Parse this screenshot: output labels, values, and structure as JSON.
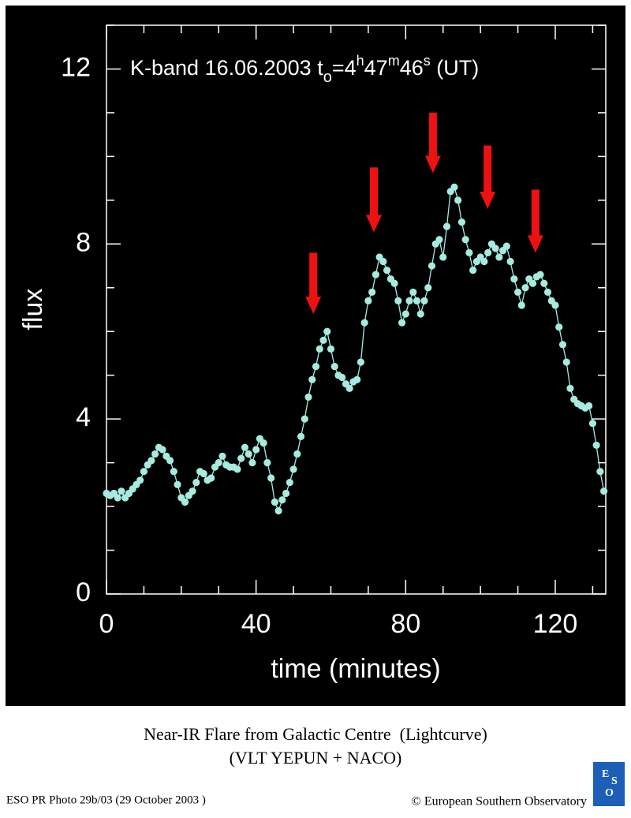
{
  "chart_data": {
    "type": "line",
    "annotation_parts": [
      [
        "K-band 16.06.2003 t",
        "none"
      ],
      [
        "o",
        "sub"
      ],
      [
        "=4",
        "none"
      ],
      [
        "h",
        "super"
      ],
      [
        "47",
        "none"
      ],
      [
        "m",
        "super"
      ],
      [
        "46",
        "none"
      ],
      [
        "s",
        "super"
      ],
      [
        " (UT)",
        "none"
      ]
    ],
    "xlabel": "time (minutes)",
    "ylabel": "flux",
    "xlim": [
      0,
      133.5
    ],
    "ylim": [
      0,
      13
    ],
    "xticks": [
      0,
      40,
      80,
      120
    ],
    "yticks": [
      0,
      4,
      8,
      12
    ],
    "xminor_ticks": [
      10,
      20,
      30,
      50,
      60,
      70,
      90,
      100,
      110,
      130
    ],
    "yminor_ticks": [
      1,
      2,
      3,
      5,
      6,
      7,
      9,
      10,
      11,
      13
    ],
    "color": "#a6ebe0",
    "x": [
      0,
      1,
      2,
      3,
      4,
      5,
      6,
      7,
      8,
      9,
      10,
      11,
      12,
      13,
      14,
      15,
      16,
      17,
      18,
      19,
      20,
      21,
      22,
      23,
      24,
      25,
      26,
      27,
      28,
      29,
      30,
      31,
      32,
      33,
      34,
      35,
      36,
      37,
      38,
      39,
      40,
      41,
      42,
      43,
      44,
      45,
      46,
      47,
      48,
      49,
      50,
      51,
      52,
      53,
      54,
      55,
      56,
      57,
      58,
      59,
      60,
      61,
      62,
      63,
      64,
      65,
      66,
      67,
      68,
      69,
      70,
      71,
      72,
      73,
      74,
      75,
      76,
      77,
      78,
      79,
      80,
      81,
      82,
      83,
      84,
      85,
      86,
      87,
      88,
      89,
      90,
      91,
      92,
      93,
      94,
      95,
      96,
      97,
      98,
      99,
      100,
      101,
      102,
      103,
      104,
      105,
      106,
      107,
      108,
      109,
      110,
      111,
      112,
      113,
      114,
      115,
      116,
      117,
      118,
      119,
      120,
      121,
      122,
      123,
      124,
      125,
      126,
      127,
      128,
      129,
      130,
      131,
      132,
      133
    ],
    "values": [
      2.3,
      2.25,
      2.3,
      2.2,
      2.35,
      2.2,
      2.3,
      2.4,
      2.5,
      2.6,
      2.8,
      2.95,
      3.05,
      3.2,
      3.35,
      3.3,
      3.15,
      3.05,
      2.8,
      2.5,
      2.2,
      2.1,
      2.25,
      2.35,
      2.55,
      2.8,
      2.75,
      2.6,
      2.65,
      2.9,
      3.0,
      3.15,
      2.95,
      2.9,
      2.9,
      2.85,
      3.1,
      3.35,
      3.2,
      3.0,
      3.3,
      3.55,
      3.45,
      3.0,
      2.65,
      2.1,
      1.9,
      2.15,
      2.3,
      2.55,
      2.85,
      3.2,
      3.6,
      4.0,
      4.5,
      4.9,
      5.2,
      5.6,
      5.8,
      6.0,
      5.6,
      5.2,
      5.0,
      4.95,
      4.8,
      4.7,
      4.85,
      4.9,
      5.3,
      6.2,
      6.7,
      6.9,
      7.3,
      7.7,
      7.6,
      7.4,
      7.2,
      7.1,
      6.7,
      6.2,
      6.4,
      6.7,
      6.9,
      6.7,
      6.4,
      6.7,
      7.0,
      7.5,
      8.0,
      8.1,
      7.7,
      8.4,
      9.2,
      9.3,
      9.0,
      8.5,
      8.1,
      7.8,
      7.4,
      7.6,
      7.7,
      7.6,
      7.8,
      8.0,
      7.9,
      7.7,
      7.85,
      7.95,
      7.6,
      7.2,
      6.9,
      6.6,
      7.0,
      7.2,
      7.1,
      7.25,
      7.3,
      7.1,
      6.9,
      6.7,
      6.6,
      6.1,
      5.7,
      5.3,
      4.7,
      4.45,
      4.35,
      4.3,
      4.25,
      4.3,
      3.9,
      3.4,
      2.8,
      2.35
    ],
    "arrows": {
      "color": "#ee1111",
      "x": [
        55.3,
        71.5,
        87.3,
        101.9,
        114.7
      ],
      "tip": [
        6.4,
        8.27,
        9.62,
        8.8,
        7.8
      ],
      "top": [
        7.8,
        9.75,
        11.0,
        10.25,
        9.24
      ]
    }
  },
  "caption": [
    "Near-IR Flare from Galactic Centre  (Lightcurve)",
    "(VLT YEPUN + NACO)"
  ],
  "footer_left": "ESO PR Photo 29b/03 (29 October 2003 )",
  "footer_right": "© European Southern Observatory",
  "logo_text": [
    "E",
    "S",
    "O"
  ]
}
